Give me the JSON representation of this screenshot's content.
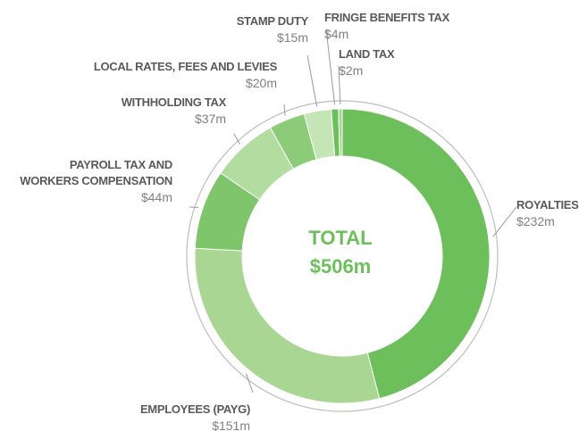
{
  "chart_data": {
    "type": "pie",
    "donut": true,
    "categories": [
      "ROYALTIES",
      "EMPLOYEES (PAYG)",
      "PAYROLL TAX AND\nWORKERS COMPENSATION",
      "WITHHOLDING TAX",
      "LOCAL RATES, FEES AND LEVIES",
      "STAMP DUTY",
      "FRINGE BENEFITS TAX",
      "LAND TAX"
    ],
    "values": [
      232,
      151,
      44,
      37,
      20,
      15,
      4,
      2
    ],
    "value_labels": [
      "$232m",
      "$151m",
      "$44m",
      "$37m",
      "$20m",
      "$15m",
      "$4m",
      "$2m"
    ],
    "colors": [
      "#6dbf5b",
      "#a9d693",
      "#7fc56c",
      "#b3dca1",
      "#8ccb78",
      "#c4e5b5",
      "#6dbf5b",
      "#a9d693"
    ],
    "center_title": "TOTAL",
    "center_value": "$506m"
  }
}
